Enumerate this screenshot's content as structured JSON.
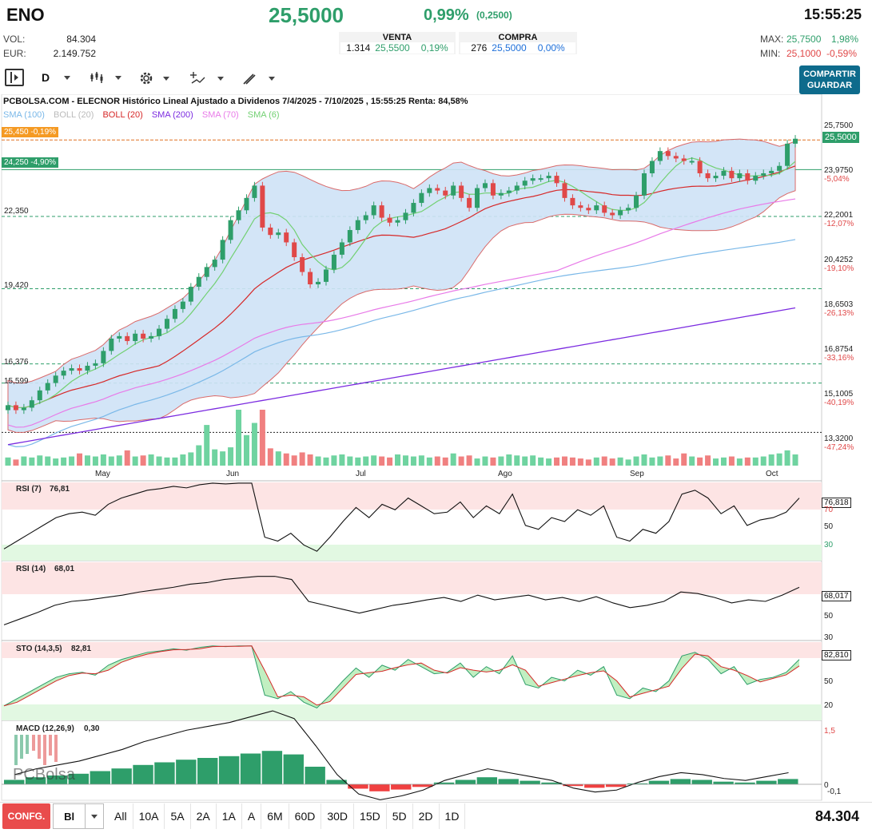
{
  "header": {
    "ticker": "ENO",
    "price": "25,5000",
    "change_pct": "0,99%",
    "change_abs": "(0,2500)",
    "time": "15:55:25",
    "vol_label": "VOL:",
    "vol_value": "84.304",
    "eur_label": "EUR:",
    "eur_value": "2.149.752",
    "sell": {
      "label": "VENTA",
      "qty": "1.314",
      "price": "25,5500",
      "pct": "0,19%"
    },
    "buy": {
      "label": "COMPRA",
      "qty": "276",
      "price": "25,5000",
      "pct": "0,00%"
    },
    "max_label": "MAX:",
    "max_value": "25,7500",
    "max_pct": "1,98%",
    "min_label": "MIN:",
    "min_value": "25,1000",
    "min_pct": "-0,59%"
  },
  "toolbar": {
    "period": "D",
    "share_label": "COMPARTIR",
    "save_label": "GUARDAR"
  },
  "chart": {
    "title": "PCBOLSA.COM - ELECNOR Histórico Lineal Ajustado a Dividenos 7/4/2025 - 7/10/2025 , 15:55:25 Renta: 84,58%",
    "legend": [
      {
        "text": "SMA (100)",
        "color": "#7ab8e8"
      },
      {
        "text": "BOLL (20)",
        "color": "#bbbbbb"
      },
      {
        "text": "BOLL (20)",
        "color": "#d62828"
      },
      {
        "text": "SMA (200)",
        "color": "#7b2be0"
      },
      {
        "text": "SMA (70)",
        "color": "#e87ae8"
      },
      {
        "text": "SMA (6)",
        "color": "#72d072"
      }
    ],
    "price_axis": [
      "25,7500",
      "23,9750",
      "22,2001",
      "20,4252",
      "18,6503",
      "16,8754",
      "15,1005",
      "13,3200"
    ],
    "pct_axis": [
      "-5,04%",
      "-12,07%",
      "-19,10%",
      "-26,13%",
      "-33,16%",
      "-40,19%",
      "-47,24%"
    ],
    "current_tag": "25,5000",
    "left_levels": [
      {
        "text": "25,450  -0,19%",
        "kind": "orange"
      },
      {
        "text": "24,250  -4,90%",
        "kind": "green"
      },
      {
        "text": "22,350",
        "kind": "plain"
      },
      {
        "text": "19,420",
        "kind": "plain"
      },
      {
        "text": "16,376",
        "kind": "plain"
      },
      {
        "text": "15,599",
        "kind": "plain"
      }
    ],
    "months": [
      "May",
      "Jun",
      "Jul",
      "Ago",
      "Sep",
      "Oct"
    ]
  },
  "indicators": {
    "rsi7": {
      "label": "RSI (7)",
      "value": "76,81",
      "tag": "76,818",
      "levels": [
        "70",
        "50",
        "30"
      ]
    },
    "rsi14": {
      "label": "RSI (14)",
      "value": "68,01",
      "tag": "68,017",
      "levels": [
        "50",
        "30"
      ]
    },
    "sto": {
      "label": "STO (14,3,5)",
      "value": "82,81",
      "tag": "82,810",
      "levels": [
        "50",
        "20"
      ]
    },
    "macd": {
      "label": "MACD (12,26,9)",
      "value": "0,30",
      "levels": [
        "1,5",
        "0",
        "-0,1"
      ]
    }
  },
  "watermark": "PCBolsa",
  "bottom": {
    "config": "CONFG.",
    "chart_type": "Bl",
    "periods": [
      "All",
      "10A",
      "5A",
      "2A",
      "1A",
      "A",
      "6M",
      "60D",
      "30D",
      "15D",
      "5D",
      "2D",
      "1D"
    ],
    "volume": "84.304"
  },
  "chart_data": {
    "type": "candlestick",
    "x_range": [
      "7/4/2025",
      "7/10/2025"
    ],
    "ylim": [
      13.32,
      25.75
    ],
    "close": [
      14.7,
      14.5,
      14.6,
      14.9,
      15.3,
      15.6,
      15.9,
      16.1,
      16.2,
      16.1,
      16.3,
      16.4,
      16.9,
      17.4,
      17.5,
      17.3,
      17.6,
      17.4,
      17.5,
      17.8,
      18.2,
      18.6,
      18.9,
      19.5,
      19.9,
      20.3,
      20.6,
      21.4,
      22.2,
      22.6,
      23.1,
      23.6,
      21.9,
      21.6,
      21.7,
      21.3,
      20.7,
      20.1,
      19.6,
      19.7,
      20.2,
      20.8,
      21.3,
      21.8,
      22.2,
      22.4,
      22.8,
      22.3,
      22.1,
      22.2,
      22.5,
      22.9,
      23.3,
      23.5,
      23.4,
      23.2,
      23.6,
      23.1,
      22.7,
      23.5,
      23.7,
      23.2,
      23.3,
      23.4,
      23.6,
      23.8,
      23.9,
      23.9,
      24.0,
      23.7,
      23.1,
      22.8,
      22.7,
      22.6,
      22.8,
      22.5,
      22.4,
      22.6,
      22.7,
      23.2,
      24.1,
      24.6,
      25.0,
      24.8,
      24.7,
      24.6,
      24.6,
      24.1,
      23.9,
      24.0,
      24.2,
      23.9,
      24.1,
      23.8,
      24.0,
      24.1,
      24.2,
      24.4,
      25.3,
      25.5
    ],
    "volume": [
      8,
      6,
      9,
      8,
      10,
      9,
      7,
      8,
      9,
      12,
      10,
      9,
      11,
      9,
      10,
      15,
      9,
      10,
      11,
      9,
      8,
      8,
      11,
      13,
      20,
      40,
      16,
      14,
      18,
      55,
      30,
      42,
      55,
      17,
      14,
      12,
      10,
      13,
      11,
      9,
      8,
      10,
      11,
      9,
      8,
      9,
      10,
      9,
      8,
      11,
      10,
      9,
      10,
      8,
      9,
      8,
      12,
      9,
      10,
      7,
      9,
      8,
      9,
      11,
      10,
      9,
      10,
      8,
      7,
      8,
      9,
      8,
      7,
      6,
      8,
      9,
      7,
      8,
      6,
      9,
      11,
      8,
      9,
      10,
      7,
      12,
      9,
      8,
      10,
      7,
      8,
      9,
      7,
      8,
      8,
      9,
      11,
      12,
      15,
      11
    ],
    "rsi7": [
      15,
      25,
      35,
      45,
      55,
      60,
      62,
      58,
      72,
      80,
      85,
      90,
      92,
      95,
      93,
      97,
      99,
      98,
      99,
      99,
      30,
      25,
      35,
      20,
      12,
      30,
      50,
      68,
      55,
      72,
      65,
      80,
      70,
      60,
      62,
      75,
      55,
      70,
      60,
      85,
      45,
      40,
      55,
      50,
      65,
      58,
      70,
      30,
      25,
      40,
      35,
      50,
      85,
      90,
      80,
      60,
      70,
      45,
      52,
      55,
      62,
      80
    ],
    "rsi14": [
      20,
      28,
      36,
      45,
      50,
      52,
      55,
      58,
      62,
      65,
      68,
      72,
      74,
      78,
      80,
      82,
      82,
      78,
      50,
      45,
      40,
      35,
      40,
      45,
      48,
      52,
      55,
      50,
      58,
      52,
      55,
      58,
      52,
      55,
      50,
      56,
      48,
      42,
      45,
      50,
      62,
      60,
      55,
      48,
      52,
      50,
      58,
      68
    ],
    "macd_hist": [
      0.05,
      0.08,
      0.1,
      0.12,
      0.15,
      0.18,
      0.22,
      0.25,
      0.28,
      0.3,
      0.32,
      0.35,
      0.38,
      0.34,
      0.2,
      0.05,
      -0.05,
      -0.08,
      -0.06,
      -0.03,
      0.02,
      0.05,
      0.08,
      0.06,
      0.04,
      0.02,
      -0.02,
      -0.04,
      -0.03,
      0.01,
      0.04,
      0.06,
      0.05,
      0.03,
      0.02,
      0.04,
      0.06
    ]
  }
}
